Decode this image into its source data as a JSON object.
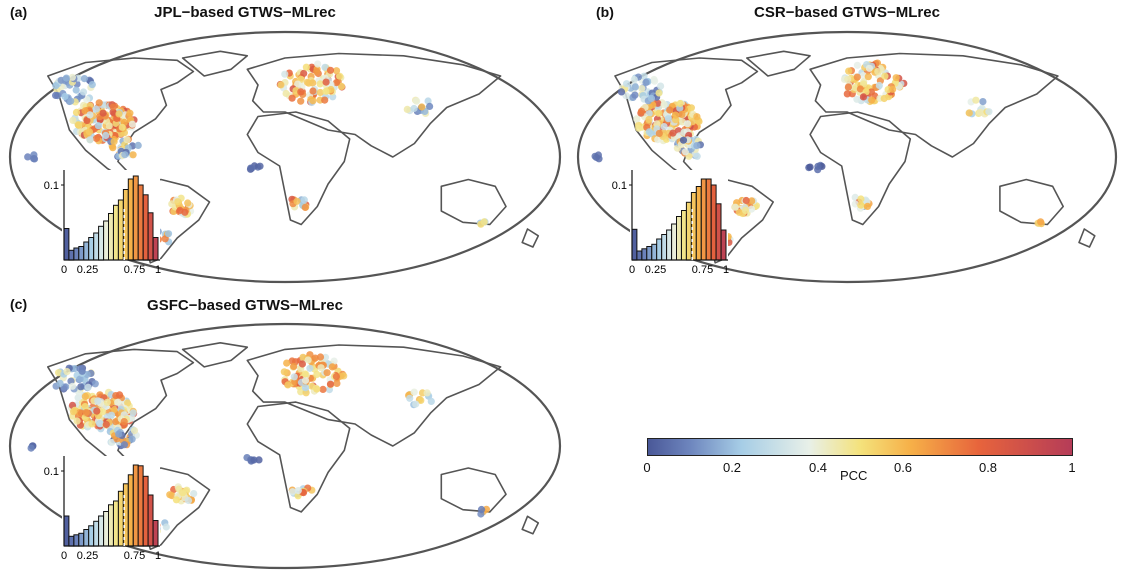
{
  "panels": [
    {
      "label": "(a)",
      "title": "JPL−based GTWS−MLrec",
      "hist": {
        "heights": [
          0.042,
          0.013,
          0.016,
          0.018,
          0.024,
          0.03,
          0.036,
          0.045,
          0.052,
          0.062,
          0.073,
          0.08,
          0.094,
          0.108,
          0.112,
          0.1,
          0.087,
          0.063,
          0.03
        ],
        "xticks": [
          "0",
          "0.25",
          "0.75",
          "1"
        ],
        "ytick": "0.1"
      }
    },
    {
      "label": "(b)",
      "title": "CSR−based GTWS−MLrec",
      "hist": {
        "heights": [
          0.041,
          0.012,
          0.015,
          0.018,
          0.021,
          0.028,
          0.034,
          0.04,
          0.048,
          0.058,
          0.066,
          0.077,
          0.09,
          0.098,
          0.108,
          0.108,
          0.1,
          0.075,
          0.04
        ],
        "xticks": [
          "0",
          "0.25",
          "0.75",
          "1"
        ],
        "ytick": "0.1"
      }
    },
    {
      "label": "(c)",
      "title": "GSFC−based GTWS−MLrec",
      "hist": {
        "heights": [
          0.04,
          0.013,
          0.015,
          0.017,
          0.022,
          0.027,
          0.033,
          0.04,
          0.046,
          0.055,
          0.06,
          0.073,
          0.083,
          0.095,
          0.108,
          0.107,
          0.093,
          0.068,
          0.034
        ],
        "xticks": [
          "0",
          "0.25",
          "0.75",
          "1"
        ],
        "ytick": "0.1"
      }
    }
  ],
  "colorbar": {
    "label": "PCC",
    "ticks": [
      "0",
      "0.2",
      "0.4",
      "0.6",
      "0.8",
      "1"
    ],
    "colors": [
      "#4a5898",
      "#6e86be",
      "#a6cde6",
      "#e8f0e8",
      "#f4e27c",
      "#f6b048",
      "#e7643c",
      "#b53c58"
    ]
  },
  "chart_data": {
    "type": "histogram",
    "xlim": [
      0,
      1
    ],
    "series": [
      {
        "name": "JPL−based GTWS−MLrec",
        "values": [
          0.042,
          0.013,
          0.016,
          0.018,
          0.024,
          0.03,
          0.036,
          0.045,
          0.052,
          0.062,
          0.073,
          0.08,
          0.094,
          0.108,
          0.112,
          0.1,
          0.087,
          0.063,
          0.03
        ]
      },
      {
        "name": "CSR−based GTWS−MLrec",
        "values": [
          0.041,
          0.012,
          0.015,
          0.018,
          0.021,
          0.028,
          0.034,
          0.04,
          0.048,
          0.058,
          0.066,
          0.077,
          0.09,
          0.098,
          0.108,
          0.108,
          0.1,
          0.075,
          0.04
        ]
      },
      {
        "name": "GSFC−based GTWS−MLrec",
        "values": [
          0.04,
          0.013,
          0.015,
          0.017,
          0.022,
          0.027,
          0.033,
          0.04,
          0.046,
          0.055,
          0.06,
          0.073,
          0.083,
          0.095,
          0.108,
          0.107,
          0.093,
          0.068,
          0.034
        ]
      }
    ]
  }
}
